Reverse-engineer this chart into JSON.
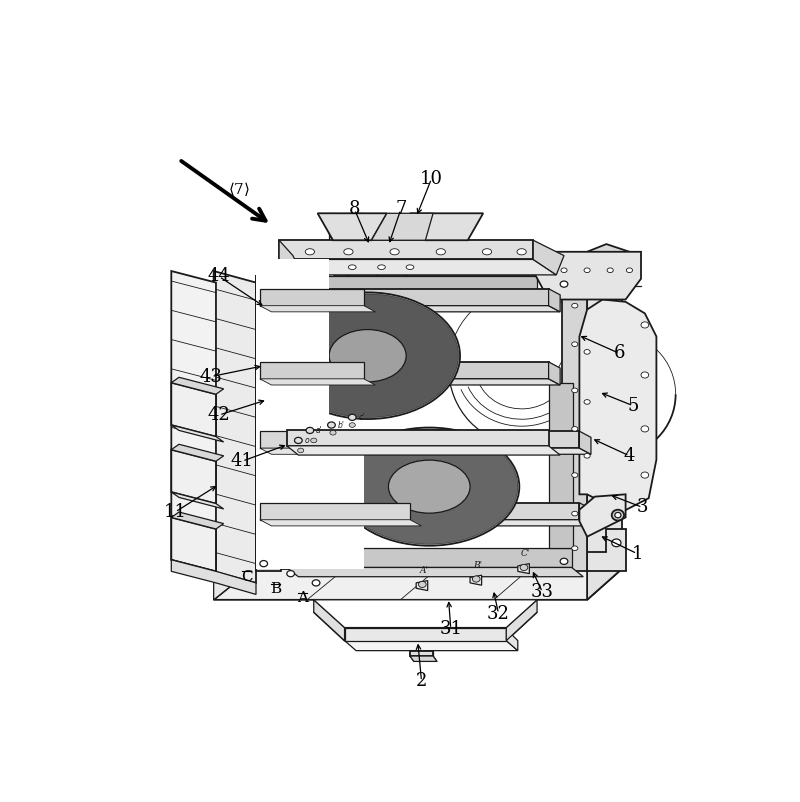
{
  "bg_color": "#ffffff",
  "line_color": "#1a1a1a",
  "figsize": [
    8.0,
    8.02
  ],
  "dpi": 100,
  "annotations": [
    [
      "2",
      415,
      42,
      410,
      95,
      true
    ],
    [
      "31",
      453,
      110,
      450,
      150,
      true
    ],
    [
      "32",
      515,
      130,
      508,
      162,
      true
    ],
    [
      "33",
      572,
      158,
      558,
      188,
      true
    ],
    [
      "1",
      695,
      208,
      645,
      232,
      true
    ],
    [
      "3",
      702,
      268,
      658,
      285,
      true
    ],
    [
      "4",
      685,
      335,
      635,
      358,
      true
    ],
    [
      "5",
      690,
      400,
      645,
      418,
      true
    ],
    [
      "6",
      672,
      468,
      618,
      492,
      true
    ],
    [
      "11",
      95,
      262,
      152,
      298,
      true
    ],
    [
      "41",
      182,
      328,
      242,
      350,
      true
    ],
    [
      "42",
      152,
      388,
      215,
      408,
      true
    ],
    [
      "43",
      142,
      438,
      210,
      452,
      true
    ],
    [
      "44",
      152,
      568,
      212,
      528,
      true
    ],
    [
      "7",
      388,
      655,
      372,
      608,
      true
    ],
    [
      "8",
      328,
      655,
      348,
      608,
      true
    ],
    [
      "10",
      428,
      695,
      408,
      645,
      true
    ]
  ],
  "phase_labels_left": [
    [
      "C",
      188,
      168
    ],
    [
      "B",
      228,
      158
    ],
    [
      "A",
      262,
      150
    ]
  ]
}
